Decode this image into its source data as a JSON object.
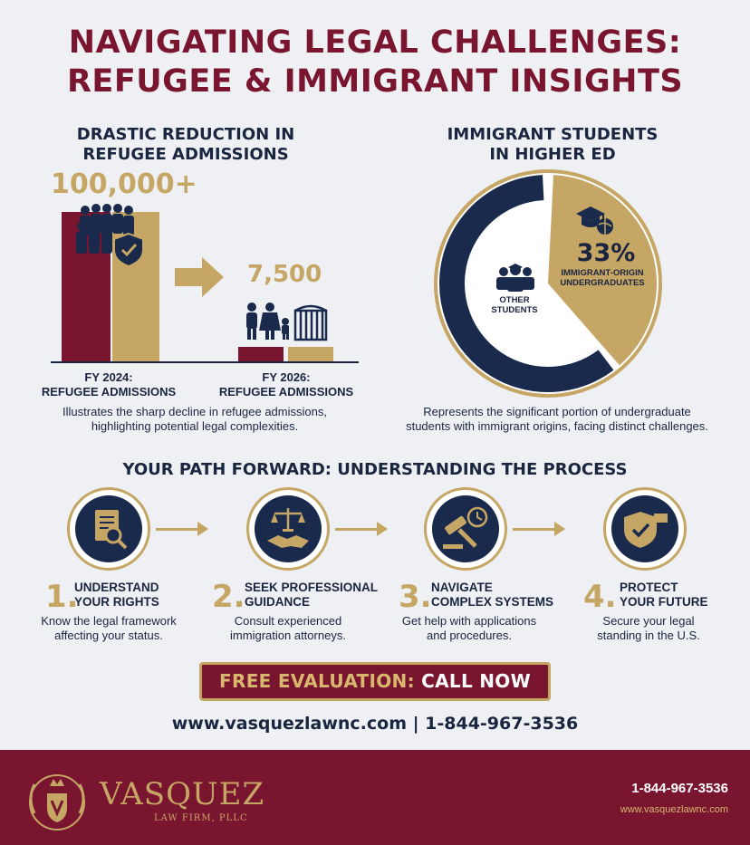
{
  "title": {
    "line1": "NAVIGATING LEGAL CHALLENGES:",
    "line2": "REFUGEE & IMMIGRANT INSIGHTS"
  },
  "refugee": {
    "heading_line1": "DRASTIC REDUCTION IN",
    "heading_line2": "REFUGEE ADMISSIONS",
    "fy2024_value": "100,000+",
    "fy2026_value": "7,500",
    "fy2024_label_line1": "FY 2024:",
    "fy2024_label_line2": "REFUGEE ADMISSIONS",
    "fy2026_label_line1": "FY 2026:",
    "fy2026_label_line2": "REFUGEE ADMISSIONS",
    "desc_line1": "Illustrates the sharp decline in refugee admissions,",
    "desc_line2": "highlighting potential legal complexities."
  },
  "students": {
    "heading_line1": "IMMIGRANT STUDENTS",
    "heading_line2": "IN HIGHER ED",
    "percent": "33%",
    "segment_label_line1": "IMMIGRANT-ORIGIN",
    "segment_label_line2": "UNDERGRADUATES",
    "other_label_line1": "OTHER",
    "other_label_line2": "STUDENTS",
    "desc_line1": "Represents the significant portion of undergraduate",
    "desc_line2": "students with immigrant origins, facing distinct challenges."
  },
  "chart_data": [
    {
      "type": "bar",
      "categories": [
        "FY 2024: REFUGEE ADMISSIONS",
        "FY 2026: REFUGEE ADMISSIONS"
      ],
      "values": [
        100000,
        7500
      ],
      "value_labels": [
        "100,000+",
        "7,500"
      ]
    },
    {
      "type": "pie",
      "categories": [
        "IMMIGRANT-ORIGIN UNDERGRADUATES",
        "OTHER STUDENTS"
      ],
      "values": [
        33,
        67
      ]
    }
  ],
  "process": {
    "heading": "YOUR PATH FORWARD: UNDERSTANDING THE PROCESS",
    "steps": [
      {
        "num": "1.",
        "title_line1": "UNDERSTAND",
        "title_line2": "YOUR RIGHTS",
        "desc_line1": "Know the legal framework",
        "desc_line2": "affecting your status.",
        "icon": "document-search-icon"
      },
      {
        "num": "2.",
        "title_line1": "SEEK PROFESSIONAL",
        "title_line2": "GUIDANCE",
        "desc_line1": "Consult experienced",
        "desc_line2": "immigration attorneys.",
        "icon": "scales-handshake-icon"
      },
      {
        "num": "3.",
        "title_line1": "NAVIGATE",
        "title_line2": "COMPLEX SYSTEMS",
        "desc_line1": "Get help with applications",
        "desc_line2": "and procedures.",
        "icon": "gavel-clock-icon"
      },
      {
        "num": "4.",
        "title_line1": "PROTECT",
        "title_line2": "YOUR FUTURE",
        "desc_line1": "Secure your legal",
        "desc_line2": "standing in the U.S.",
        "icon": "shield-check-icon"
      }
    ]
  },
  "cta": {
    "label_a": "FREE EVALUATION:",
    "label_b": "CALL NOW"
  },
  "contact": "www.vasquezlawnc.com | 1-844-967-3536",
  "footer": {
    "brand": "VASQUEZ",
    "brand_sub": "LAW FIRM, PLLC",
    "phone": "1-844-967-3536",
    "url": "www.vasquezlawnc.com"
  },
  "colors": {
    "maroon": "#7a1530",
    "gold": "#c6a664",
    "navy": "#1a2a4d"
  }
}
